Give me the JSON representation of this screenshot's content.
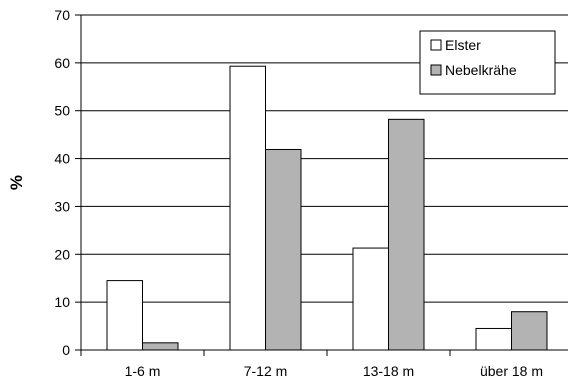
{
  "chart_data": {
    "type": "bar",
    "categories": [
      "1-6 m",
      "7-12 m",
      "13-18 m",
      "über 18 m"
    ],
    "series": [
      {
        "name": "Elster",
        "values": [
          14.5,
          59.3,
          21.3,
          4.5
        ],
        "color": "#ffffff"
      },
      {
        "name": "Nebelkrähe",
        "values": [
          1.5,
          41.9,
          48.2,
          8.0
        ],
        "color": "#b3b3b3"
      }
    ],
    "title": "",
    "xlabel": "",
    "ylabel": "%",
    "ylim": [
      0,
      70
    ],
    "yticks": [
      0,
      10,
      20,
      30,
      40,
      50,
      60,
      70
    ],
    "grid": true,
    "legend": "top-right"
  }
}
